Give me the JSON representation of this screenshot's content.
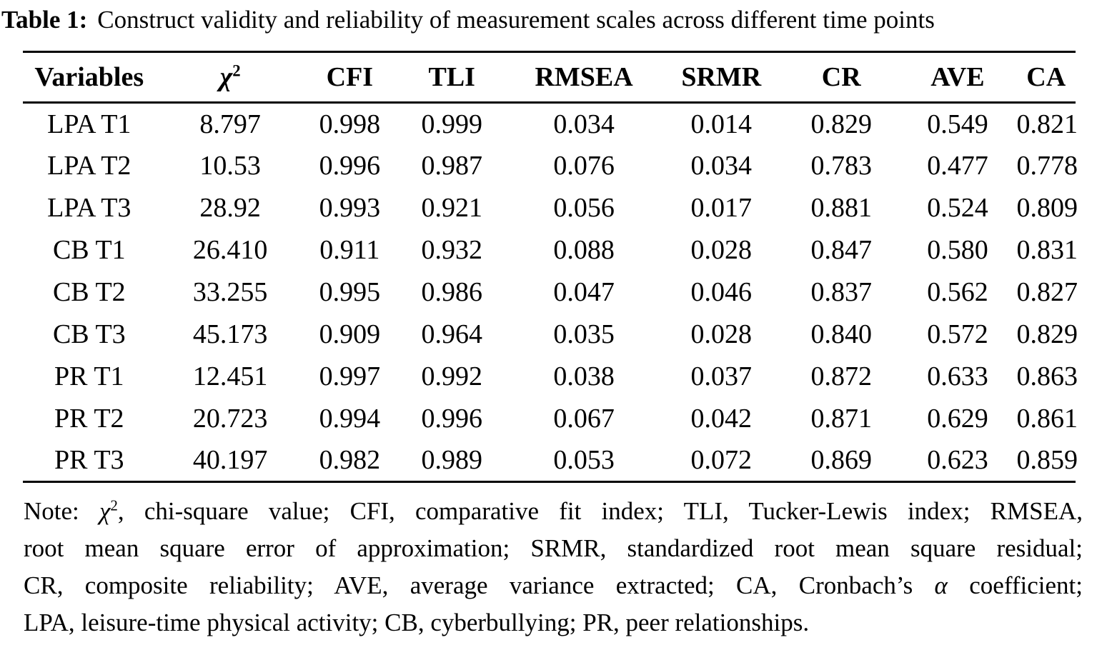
{
  "title": {
    "label": "Table 1:",
    "text": "Construct validity and reliability of measurement scales across different time points"
  },
  "table": {
    "columns": [
      {
        "label": "Variables"
      },
      {
        "label": "χ",
        "italic": true,
        "sup": "2"
      },
      {
        "label": "CFI"
      },
      {
        "label": "TLI"
      },
      {
        "label": "RMSEA"
      },
      {
        "label": "SRMR"
      },
      {
        "label": "CR"
      },
      {
        "label": "AVE"
      },
      {
        "label": "CA"
      }
    ],
    "rows": [
      [
        "LPA T1",
        "8.797",
        "0.998",
        "0.999",
        "0.034",
        "0.014",
        "0.829",
        "0.549",
        "0.821"
      ],
      [
        "LPA T2",
        "10.53",
        "0.996",
        "0.987",
        "0.076",
        "0.034",
        "0.783",
        "0.477",
        "0.778"
      ],
      [
        "LPA T3",
        "28.92",
        "0.993",
        "0.921",
        "0.056",
        "0.017",
        "0.881",
        "0.524",
        "0.809"
      ],
      [
        "CB T1",
        "26.410",
        "0.911",
        "0.932",
        "0.088",
        "0.028",
        "0.847",
        "0.580",
        "0.831"
      ],
      [
        "CB T2",
        "33.255",
        "0.995",
        "0.986",
        "0.047",
        "0.046",
        "0.837",
        "0.562",
        "0.827"
      ],
      [
        "CB T3",
        "45.173",
        "0.909",
        "0.964",
        "0.035",
        "0.028",
        "0.840",
        "0.572",
        "0.829"
      ],
      [
        "PR T1",
        "12.451",
        "0.997",
        "0.992",
        "0.038",
        "0.037",
        "0.872",
        "0.633",
        "0.863"
      ],
      [
        "PR T2",
        "20.723",
        "0.994",
        "0.996",
        "0.067",
        "0.042",
        "0.871",
        "0.629",
        "0.861"
      ],
      [
        "PR T3",
        "40.197",
        "0.982",
        "0.989",
        "0.053",
        "0.072",
        "0.869",
        "0.623",
        "0.859"
      ]
    ]
  },
  "note": {
    "lines": [
      [
        {
          "t": "Note: "
        },
        {
          "t": "χ",
          "i": true
        },
        {
          "t": "2",
          "sup": true
        },
        {
          "t": ", chi-square value; CFI, comparative fit index; TLI, Tucker-Lewis index; RMSEA,"
        }
      ],
      [
        {
          "t": "root mean square error of approximation; SRMR, standardized root mean square residual;"
        }
      ],
      [
        {
          "t": "CR, composite reliability; AVE, average variance extracted; CA, Cronbach’s "
        },
        {
          "t": "α",
          "i": true
        },
        {
          "t": " coefficient;"
        }
      ],
      [
        {
          "t": "LPA, leisure-time physical activity; CB, cyberbullying; PR, peer relationships."
        }
      ]
    ]
  }
}
